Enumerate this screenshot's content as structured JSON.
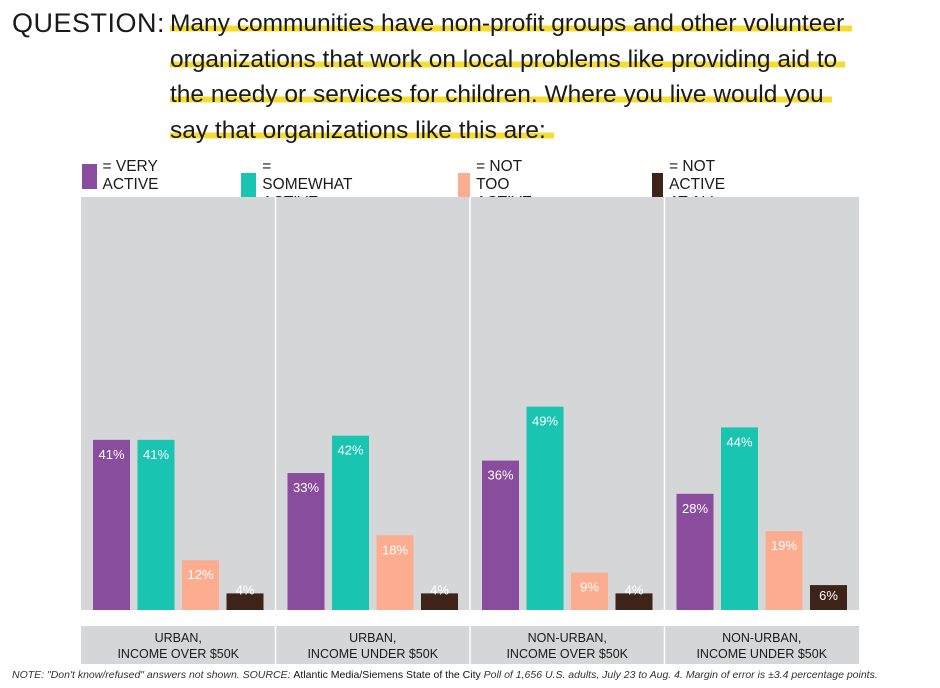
{
  "question": {
    "label": "QUESTION:",
    "lines": [
      "Many communities have non-profit groups and other volunteer",
      "organizations that work on local problems like providing aid to",
      "the needy or services for children. Where you live would you",
      "say that organizations like this are:"
    ]
  },
  "colors": {
    "very_active": "#8a4c9c",
    "somewhat_active": "#19c4b0",
    "not_too_active": "#fcad8f",
    "not_active_at_all": "#3d2318",
    "panel_bg": "#d5d6d8",
    "highlight": "#f5dc32"
  },
  "legend": [
    {
      "label": "= VERY ACTIVE",
      "color_key": "very_active"
    },
    {
      "label": "= SOMEWHAT ACTIVE",
      "color_key": "somewhat_active"
    },
    {
      "label": "= NOT TOO ACTIVE",
      "color_key": "not_too_active"
    },
    {
      "label": "= NOT ACTIVE AT ALL",
      "color_key": "not_active_at_all"
    }
  ],
  "chart_data": {
    "type": "bar",
    "title": "Where you live would you say that organizations like this are:",
    "xlabel": "",
    "ylabel": "",
    "ylim": [
      0,
      100
    ],
    "grid": false,
    "legend_position": "top",
    "categories": [
      [
        "URBAN,",
        "INCOME OVER $50K"
      ],
      [
        "URBAN,",
        "INCOME UNDER $50K"
      ],
      [
        "NON-URBAN,",
        "INCOME OVER $50K"
      ],
      [
        "NON-URBAN,",
        "INCOME UNDER $50K"
      ]
    ],
    "series": [
      {
        "name": "VERY ACTIVE",
        "color_key": "very_active",
        "values": [
          41,
          33,
          36,
          28
        ],
        "labels": [
          "41%",
          "33%",
          "36%",
          "28%"
        ]
      },
      {
        "name": "SOMEWHAT ACTIVE",
        "color_key": "somewhat_active",
        "values": [
          41,
          42,
          49,
          44
        ],
        "labels": [
          "41%",
          "42%",
          "49%",
          "44%"
        ]
      },
      {
        "name": "NOT TOO ACTIVE",
        "color_key": "not_too_active",
        "values": [
          12,
          18,
          9,
          19
        ],
        "labels": [
          "12%",
          "18%",
          "9%",
          "19%"
        ]
      },
      {
        "name": "NOT ACTIVE AT ALL",
        "color_key": "not_active_at_all",
        "values": [
          4,
          4,
          4,
          6
        ],
        "labels": [
          "4%",
          "4%",
          "4%",
          "6%"
        ]
      }
    ]
  },
  "note": {
    "prefix": "NOTE: \"Don't know/refused\" answers not shown. SOURCE: ",
    "source": "Atlantic Media/Siemens State of the City",
    "suffix": " Poll of 1,656 U.S. adults, July 23 to Aug. 4. Margin of error is ±3.4 percentage points."
  }
}
